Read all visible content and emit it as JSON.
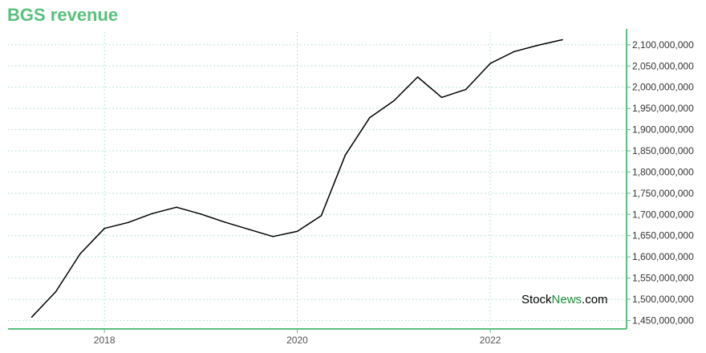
{
  "title": "BGS revenue",
  "watermark": {
    "part1": "Stock",
    "part2": "News",
    "part3": ".com"
  },
  "colors": {
    "accent": "#5ac07e",
    "line": "#000000",
    "grid": "#a8dcc4"
  },
  "chart_data": {
    "type": "line",
    "title": "BGS revenue",
    "xlabel": "",
    "ylabel": "",
    "grid": true,
    "y_axis_side": "right",
    "ylim": [
      1430000000,
      2130000000
    ],
    "xlim": [
      "2017-01-01",
      "2023-06-01"
    ],
    "x_ticks": [
      {
        "date": "2018-01-01",
        "label": "2018"
      },
      {
        "date": "2020-01-01",
        "label": "2020"
      },
      {
        "date": "2022-01-01",
        "label": "2022"
      }
    ],
    "y_ticks": [
      {
        "value": 1450000000,
        "label": "1,450,000,000"
      },
      {
        "value": 1500000000,
        "label": "1,500,000,000"
      },
      {
        "value": 1550000000,
        "label": "1,550,000,000"
      },
      {
        "value": 1600000000,
        "label": "1,600,000,000"
      },
      {
        "value": 1650000000,
        "label": "1,650,000,000"
      },
      {
        "value": 1700000000,
        "label": "1,700,000,000"
      },
      {
        "value": 1750000000,
        "label": "1,750,000,000"
      },
      {
        "value": 1800000000,
        "label": "1,800,000,000"
      },
      {
        "value": 1850000000,
        "label": "1,850,000,000"
      },
      {
        "value": 1900000000,
        "label": "1,900,000,000"
      },
      {
        "value": 1950000000,
        "label": "1,950,000,000"
      },
      {
        "value": 2000000000,
        "label": "2,000,000,000"
      },
      {
        "value": 2050000000,
        "label": "2,050,000,000"
      },
      {
        "value": 2100000000,
        "label": "2,100,000,000"
      }
    ],
    "series": [
      {
        "points": [
          {
            "x": "2017-04-01",
            "y": 1458000000
          },
          {
            "x": "2017-07-01",
            "y": 1518000000
          },
          {
            "x": "2017-10-01",
            "y": 1607000000
          },
          {
            "x": "2018-01-01",
            "y": 1667000000
          },
          {
            "x": "2018-04-01",
            "y": 1681000000
          },
          {
            "x": "2018-07-01",
            "y": 1702000000
          },
          {
            "x": "2018-10-01",
            "y": 1717000000
          },
          {
            "x": "2019-01-01",
            "y": 1701000000
          },
          {
            "x": "2019-04-01",
            "y": 1682000000
          },
          {
            "x": "2019-07-01",
            "y": 1665000000
          },
          {
            "x": "2019-10-01",
            "y": 1648000000
          },
          {
            "x": "2020-01-01",
            "y": 1660000000
          },
          {
            "x": "2020-04-01",
            "y": 1697000000
          },
          {
            "x": "2020-07-01",
            "y": 1840000000
          },
          {
            "x": "2020-10-01",
            "y": 1928000000
          },
          {
            "x": "2021-01-01",
            "y": 1968000000
          },
          {
            "x": "2021-04-01",
            "y": 2024000000
          },
          {
            "x": "2021-07-01",
            "y": 1976000000
          },
          {
            "x": "2021-10-01",
            "y": 1995000000
          },
          {
            "x": "2022-01-01",
            "y": 2056000000
          },
          {
            "x": "2022-04-01",
            "y": 2084000000
          },
          {
            "x": "2022-07-01",
            "y": 2099000000
          },
          {
            "x": "2022-10-01",
            "y": 2112000000
          }
        ]
      }
    ]
  }
}
